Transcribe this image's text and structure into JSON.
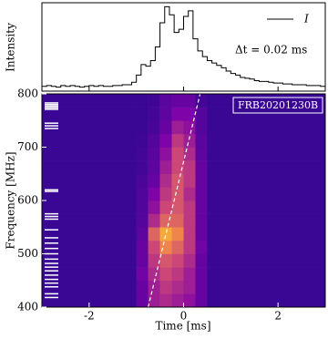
{
  "chart_data": [
    {
      "type": "line",
      "y_label": "Intensity",
      "annotation": "Δt = 0.02 ms",
      "xlim": [
        -3,
        3
      ],
      "ylim": [
        -0.05,
        1.05
      ],
      "x": [
        -3,
        -2.9,
        -2.8,
        -2.7,
        -2.6,
        -2.5,
        -2.4,
        -2.3,
        -2.2,
        -2.1,
        -2,
        -1.9,
        -1.8,
        -1.7,
        -1.6,
        -1.5,
        -1.4,
        -1.3,
        -1.2,
        -1.1,
        -1,
        -0.9,
        -0.8,
        -0.7,
        -0.6,
        -0.5,
        -0.4,
        -0.3,
        -0.2,
        -0.1,
        0,
        0.1,
        0.2,
        0.3,
        0.4,
        0.5,
        0.6,
        0.7,
        0.8,
        0.9,
        1,
        1.1,
        1.2,
        1.3,
        1.4,
        1.5,
        1.6,
        1.7,
        1.8,
        1.9,
        2,
        2.1,
        2.2,
        2.3,
        2.4,
        2.5,
        2.6,
        2.7,
        2.8,
        2.9,
        3
      ],
      "series": [
        {
          "name": "I",
          "color": "#000000",
          "values": [
            0.01,
            0.02,
            0.01,
            0.0,
            0.02,
            0.01,
            0.02,
            0.01,
            0.0,
            0.01,
            0.02,
            0.01,
            0.02,
            0.01,
            0.01,
            0.02,
            0.02,
            0.03,
            0.03,
            0.06,
            0.15,
            0.28,
            0.26,
            0.33,
            0.5,
            0.8,
            1.0,
            0.9,
            0.68,
            0.72,
            0.88,
            0.95,
            0.6,
            0.45,
            0.38,
            0.33,
            0.3,
            0.27,
            0.24,
            0.2,
            0.17,
            0.15,
            0.12,
            0.11,
            0.1,
            0.08,
            0.07,
            0.07,
            0.06,
            0.05,
            0.05,
            0.04,
            0.04,
            0.03,
            0.03,
            0.03,
            0.02,
            0.02,
            0.02,
            0.01,
            0.02
          ]
        }
      ]
    },
    {
      "type": "heatmap",
      "label": "FRB20201230B",
      "x_label": "Time [ms]",
      "y_label": "Frequency [MHz]",
      "xlim": [
        -3,
        3
      ],
      "ylim": [
        400,
        800
      ],
      "xticks": [
        -2,
        0,
        2
      ],
      "yticks": [
        400,
        500,
        600,
        700,
        800
      ],
      "colormap": "plasma",
      "x_edges": [
        -3,
        -1,
        -0.75,
        -0.5,
        -0.25,
        0,
        0.25,
        0.5,
        3
      ],
      "y_edges": [
        400,
        425,
        450,
        475,
        500,
        525,
        550,
        575,
        600,
        625,
        650,
        675,
        700,
        725,
        750,
        775,
        800
      ],
      "values": [
        [
          0.1,
          0.2,
          0.35,
          0.4,
          0.35,
          0.3,
          0.2,
          0.1
        ],
        [
          0.1,
          0.2,
          0.35,
          0.45,
          0.4,
          0.35,
          0.2,
          0.1
        ],
        [
          0.1,
          0.22,
          0.4,
          0.5,
          0.45,
          0.35,
          0.2,
          0.1
        ],
        [
          0.1,
          0.2,
          0.45,
          0.55,
          0.5,
          0.4,
          0.2,
          0.1
        ],
        [
          0.1,
          0.2,
          0.5,
          0.7,
          0.6,
          0.45,
          0.22,
          0.1
        ],
        [
          0.1,
          0.18,
          0.6,
          0.8,
          0.7,
          0.45,
          0.2,
          0.1
        ],
        [
          0.1,
          0.16,
          0.4,
          0.6,
          0.6,
          0.45,
          0.2,
          0.1
        ],
        [
          0.1,
          0.15,
          0.3,
          0.5,
          0.55,
          0.45,
          0.2,
          0.1
        ],
        [
          0.1,
          0.15,
          0.25,
          0.45,
          0.55,
          0.4,
          0.2,
          0.1
        ],
        [
          0.1,
          0.14,
          0.2,
          0.4,
          0.55,
          0.45,
          0.2,
          0.1
        ],
        [
          0.1,
          0.12,
          0.18,
          0.35,
          0.5,
          0.45,
          0.2,
          0.1
        ],
        [
          0.1,
          0.12,
          0.17,
          0.3,
          0.5,
          0.4,
          0.18,
          0.1
        ],
        [
          0.1,
          0.11,
          0.16,
          0.25,
          0.45,
          0.35,
          0.17,
          0.1
        ],
        [
          0.1,
          0.1,
          0.13,
          0.2,
          0.35,
          0.3,
          0.16,
          0.1
        ],
        [
          0.1,
          0.1,
          0.12,
          0.18,
          0.25,
          0.25,
          0.16,
          0.1
        ],
        [
          0.1,
          0.1,
          0.11,
          0.17,
          0.2,
          0.2,
          0.12,
          0.1
        ]
      ],
      "dm_line": {
        "x": [
          -0.75,
          0.35
        ],
        "y": [
          400,
          800
        ]
      },
      "flagged_channels": [
        783,
        780,
        777,
        774,
        771,
        745,
        740,
        735,
        620,
        617,
        575,
        570,
        565,
        545,
        530,
        520,
        510,
        500,
        490,
        482,
        475,
        468,
        460,
        452,
        445,
        438,
        425,
        418
      ]
    }
  ]
}
